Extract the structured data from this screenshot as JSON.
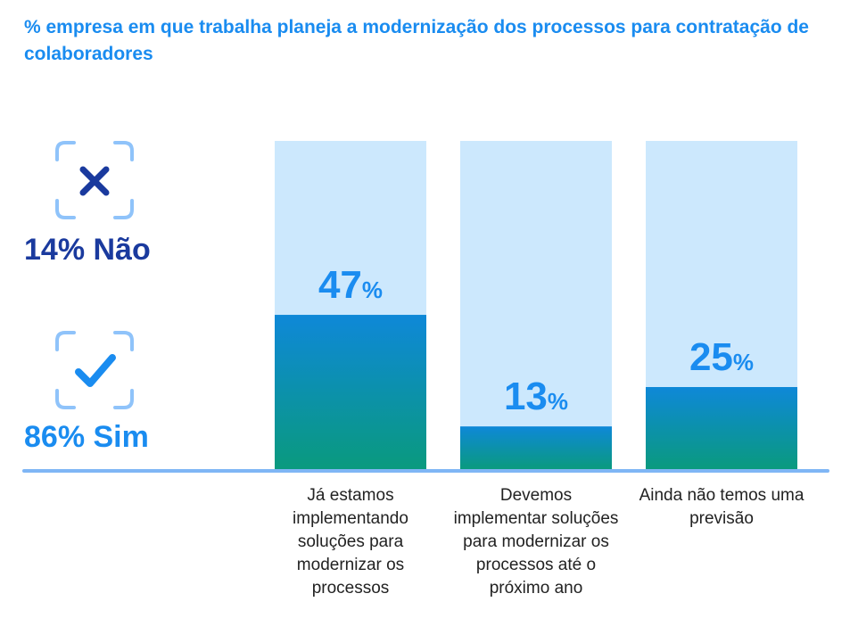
{
  "title": "% empresa em que trabalha planeja a modernização dos processos para contratação de colaboradores",
  "summary": {
    "no": {
      "label": "14% Não",
      "icon": "x-icon",
      "color": "#1a3a9e"
    },
    "yes": {
      "label": "86% Sim",
      "icon": "check-icon",
      "color": "#1a8cf0"
    },
    "frame_color": "#8fc3fa"
  },
  "chart_data": {
    "type": "bar",
    "title": "% empresa em que trabalha planeja a modernização dos processos para contratação de colaboradores",
    "categories": [
      "Já estamos implementando soluções para modernizar os processos",
      "Devemos implementar soluções para modernizar os processos até o próximo ano",
      "Ainda não temos uma previsão"
    ],
    "values": [
      47,
      13,
      25
    ],
    "value_labels": [
      "47",
      "13",
      "25"
    ],
    "unit": "%",
    "ylim": [
      0,
      100
    ],
    "grid": false,
    "legend": "none",
    "colors": {
      "background_bar": "#cce8fd",
      "fill_top": "#0e88d8",
      "fill_bottom": "#0a9a7e",
      "baseline": "#7fb6f5",
      "value_text": "#1a8cf0"
    }
  }
}
